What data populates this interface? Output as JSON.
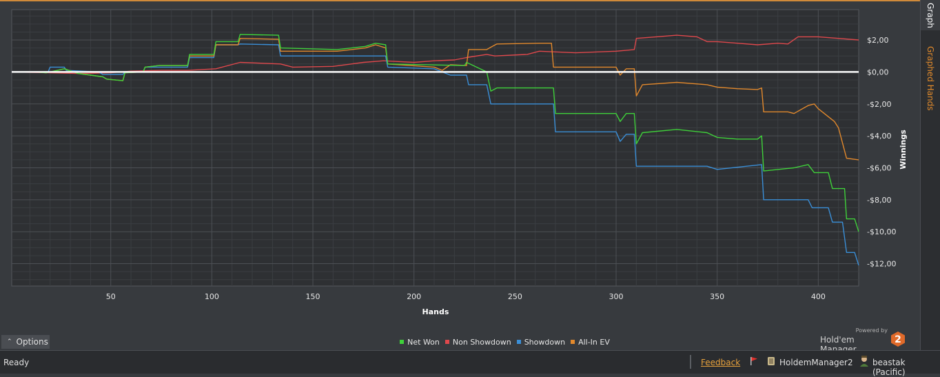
{
  "chart_data": {
    "type": "line",
    "xlabel": "Hands",
    "ylabel": "Winnings",
    "xlim": [
      1,
      420
    ],
    "ylim": [
      -13.4,
      3.9
    ],
    "x_ticks": [
      50,
      100,
      150,
      200,
      250,
      300,
      350,
      400
    ],
    "x_tick_labels": [
      "50",
      "100",
      "150",
      "200",
      "250",
      "300",
      "350",
      "400"
    ],
    "y_ticks": [
      2,
      0,
      -2,
      -4,
      -6,
      -8,
      -10,
      -12
    ],
    "y_tick_labels": [
      "$2,00",
      "$0,00",
      "-$2,00",
      "-$4,00",
      "-$6,00",
      "-$8,00",
      "-$10,00",
      "-$12,00"
    ],
    "grid": true,
    "legend_position": "bottom-center",
    "series": [
      {
        "name": "Net Won",
        "color": "#3fd23a",
        "points": [
          [
            1,
            0
          ],
          [
            12,
            0
          ],
          [
            18,
            -0.05
          ],
          [
            20,
            0
          ],
          [
            27,
            0.2
          ],
          [
            34,
            -0.1
          ],
          [
            40,
            -0.2
          ],
          [
            46,
            -0.3
          ],
          [
            48,
            -0.45
          ],
          [
            56,
            -0.55
          ],
          [
            57,
            -0.05
          ],
          [
            66,
            0
          ],
          [
            67,
            0.3
          ],
          [
            74,
            0.4
          ],
          [
            88,
            0.4
          ],
          [
            89,
            1.1
          ],
          [
            101,
            1.1
          ],
          [
            102,
            1.9
          ],
          [
            113,
            1.9
          ],
          [
            114,
            2.35
          ],
          [
            133,
            2.3
          ],
          [
            134,
            1.5
          ],
          [
            162,
            1.4
          ],
          [
            176,
            1.6
          ],
          [
            181,
            1.8
          ],
          [
            186,
            1.7
          ],
          [
            187,
            0.5
          ],
          [
            225,
            0.4
          ],
          [
            226,
            0.6
          ],
          [
            236,
            0
          ],
          [
            238,
            -1.2
          ],
          [
            241,
            -1
          ],
          [
            269,
            -1
          ],
          [
            270,
            -2.6
          ],
          [
            285,
            -2.6
          ],
          [
            300,
            -2.6
          ],
          [
            302,
            -3.1
          ],
          [
            305,
            -2.6
          ],
          [
            309,
            -2.6
          ],
          [
            310,
            -4.5
          ],
          [
            313,
            -3.8
          ],
          [
            330,
            -3.6
          ],
          [
            345,
            -3.8
          ],
          [
            350,
            -4.1
          ],
          [
            360,
            -4.2
          ],
          [
            370,
            -4.2
          ],
          [
            372,
            -4
          ],
          [
            373,
            -6.2
          ],
          [
            388,
            -6
          ],
          [
            395,
            -5.8
          ],
          [
            398,
            -6.3
          ],
          [
            405,
            -6.3
          ],
          [
            407,
            -7.3
          ],
          [
            413,
            -7.3
          ],
          [
            414,
            -9.2
          ],
          [
            418,
            -9.2
          ],
          [
            420,
            -10
          ]
        ]
      },
      {
        "name": "Non Showdown",
        "color": "#e0484c",
        "points": [
          [
            1,
            0
          ],
          [
            20,
            -0.05
          ],
          [
            35,
            -0.1
          ],
          [
            50,
            -0.05
          ],
          [
            60,
            0.05
          ],
          [
            75,
            0.1
          ],
          [
            88,
            0.1
          ],
          [
            102,
            0.2
          ],
          [
            114,
            0.6
          ],
          [
            134,
            0.5
          ],
          [
            140,
            0.3
          ],
          [
            160,
            0.35
          ],
          [
            175,
            0.6
          ],
          [
            185,
            0.7
          ],
          [
            200,
            0.6
          ],
          [
            210,
            0.7
          ],
          [
            220,
            0.75
          ],
          [
            226,
            0.9
          ],
          [
            236,
            1.1
          ],
          [
            240,
            1
          ],
          [
            256,
            1.1
          ],
          [
            262,
            1.3
          ],
          [
            280,
            1.2
          ],
          [
            300,
            1.3
          ],
          [
            309,
            1.4
          ],
          [
            310,
            2.1
          ],
          [
            320,
            2.2
          ],
          [
            330,
            2.3
          ],
          [
            340,
            2.2
          ],
          [
            345,
            1.9
          ],
          [
            350,
            1.9
          ],
          [
            360,
            1.8
          ],
          [
            370,
            1.7
          ],
          [
            380,
            1.8
          ],
          [
            385,
            1.75
          ],
          [
            390,
            2.2
          ],
          [
            400,
            2.2
          ],
          [
            410,
            2.1
          ],
          [
            420,
            2
          ]
        ]
      },
      {
        "name": "Showdown",
        "color": "#3a8fd8",
        "points": [
          [
            1,
            0
          ],
          [
            19,
            0
          ],
          [
            20,
            0.3
          ],
          [
            27,
            0.3
          ],
          [
            28,
            0.1
          ],
          [
            44,
            0
          ],
          [
            46,
            -0.15
          ],
          [
            56,
            -0.15
          ],
          [
            57,
            0
          ],
          [
            66,
            0
          ],
          [
            67,
            0.3
          ],
          [
            74,
            0.3
          ],
          [
            88,
            0.3
          ],
          [
            89,
            0.9
          ],
          [
            101,
            0.9
          ],
          [
            102,
            1.7
          ],
          [
            113,
            1.7
          ],
          [
            114,
            1.75
          ],
          [
            133,
            1.7
          ],
          [
            134,
            1
          ],
          [
            181,
            1
          ],
          [
            186,
            1
          ],
          [
            187,
            0.3
          ],
          [
            210,
            0.2
          ],
          [
            218,
            -0.2
          ],
          [
            226,
            -0.2
          ],
          [
            227,
            -0.8
          ],
          [
            236,
            -0.8
          ],
          [
            238,
            -2
          ],
          [
            269,
            -2
          ],
          [
            270,
            -3.75
          ],
          [
            300,
            -3.75
          ],
          [
            302,
            -4.35
          ],
          [
            305,
            -3.9
          ],
          [
            309,
            -3.9
          ],
          [
            310,
            -5.9
          ],
          [
            345,
            -5.9
          ],
          [
            350,
            -6.1
          ],
          [
            372,
            -5.8
          ],
          [
            373,
            -8
          ],
          [
            395,
            -8
          ],
          [
            397,
            -8.5
          ],
          [
            405,
            -8.5
          ],
          [
            407,
            -9.4
          ],
          [
            412,
            -9.4
          ],
          [
            414,
            -11.3
          ],
          [
            418,
            -11.3
          ],
          [
            420,
            -12.1
          ]
        ]
      },
      {
        "name": "All-In EV",
        "color": "#e3892c",
        "points": [
          [
            1,
            0
          ],
          [
            12,
            0
          ],
          [
            18,
            -0.05
          ],
          [
            20,
            0
          ],
          [
            27,
            0.2
          ],
          [
            34,
            -0.1
          ],
          [
            40,
            -0.2
          ],
          [
            46,
            -0.3
          ],
          [
            48,
            -0.45
          ],
          [
            56,
            -0.55
          ],
          [
            57,
            -0.05
          ],
          [
            66,
            0
          ],
          [
            67,
            0.3
          ],
          [
            74,
            0.4
          ],
          [
            88,
            0.4
          ],
          [
            89,
            1
          ],
          [
            101,
            1
          ],
          [
            102,
            1.7
          ],
          [
            113,
            1.7
          ],
          [
            114,
            2.1
          ],
          [
            133,
            2.05
          ],
          [
            134,
            1.3
          ],
          [
            162,
            1.3
          ],
          [
            176,
            1.5
          ],
          [
            181,
            1.7
          ],
          [
            186,
            1.5
          ],
          [
            187,
            0.5
          ],
          [
            210,
            0.3
          ],
          [
            214,
            0.1
          ],
          [
            218,
            0.45
          ],
          [
            226,
            0.4
          ],
          [
            227,
            1.4
          ],
          [
            236,
            1.4
          ],
          [
            238,
            1.55
          ],
          [
            241,
            1.75
          ],
          [
            262,
            1.8
          ],
          [
            268,
            1.8
          ],
          [
            269,
            0.3
          ],
          [
            280,
            0.3
          ],
          [
            300,
            0.3
          ],
          [
            302,
            -0.2
          ],
          [
            305,
            0.2
          ],
          [
            309,
            0.2
          ],
          [
            310,
            -1.5
          ],
          [
            313,
            -0.8
          ],
          [
            330,
            -0.65
          ],
          [
            345,
            -0.8
          ],
          [
            350,
            -0.95
          ],
          [
            360,
            -1.05
          ],
          [
            370,
            -1.1
          ],
          [
            372,
            -1
          ],
          [
            373,
            -2.5
          ],
          [
            385,
            -2.5
          ],
          [
            388,
            -2.6
          ],
          [
            395,
            -2.1
          ],
          [
            398,
            -2
          ],
          [
            400,
            -2.3
          ],
          [
            408,
            -3.1
          ],
          [
            410,
            -3.5
          ],
          [
            414,
            -5.4
          ],
          [
            420,
            -5.5
          ]
        ]
      },
      {
        "name": "",
        "color": "#ffffff",
        "points": [
          [
            1,
            0
          ],
          [
            420,
            0
          ]
        ]
      }
    ]
  },
  "legend": [
    {
      "label": "Net Won",
      "color": "#3fd23a"
    },
    {
      "label": "Non Showdown",
      "color": "#e0484c"
    },
    {
      "label": "Showdown",
      "color": "#3a8fd8"
    },
    {
      "label": "All-In EV",
      "color": "#e3892c"
    }
  ],
  "side_tabs": {
    "graph": "Graph",
    "graphed_hands": "Graphed Hands"
  },
  "options_label": "Options",
  "brand": {
    "powered_by": "Powered by",
    "name": "Hold'em Manager",
    "logo_number": "2"
  },
  "status_bar": {
    "status": "Ready",
    "feedback": "Feedback",
    "app_name": "HoldemManager2",
    "user": "beastak (Pacific)"
  }
}
